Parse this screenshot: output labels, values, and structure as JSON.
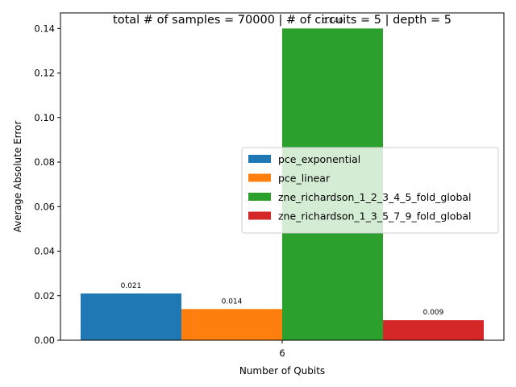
{
  "chart_data": {
    "type": "bar",
    "title": "total # of samples = 70000 | # of circuits = 5 | depth = 5",
    "xlabel": "Number of Qubits",
    "ylabel": "Average Absolute Error",
    "categories": [
      "6"
    ],
    "ylim": [
      0,
      0.147
    ],
    "yticks": [
      "0.00",
      "0.02",
      "0.04",
      "0.06",
      "0.08",
      "0.10",
      "0.12",
      "0.14"
    ],
    "grid": false,
    "legend_position": "center-right",
    "series": [
      {
        "name": "pce_exponential",
        "values": [
          0.021
        ],
        "label": "0.021",
        "color": "#1f77b4"
      },
      {
        "name": "pce_linear",
        "values": [
          0.014
        ],
        "label": "0.014",
        "color": "#ff7f0e"
      },
      {
        "name": "zne_richardson_1_2_3_4_5_fold_global",
        "values": [
          0.14
        ],
        "label": "0.140",
        "color": "#2ca02c"
      },
      {
        "name": "zne_richardson_1_3_5_7_9_fold_global",
        "values": [
          0.009
        ],
        "label": "0.009",
        "color": "#d62728"
      }
    ]
  }
}
